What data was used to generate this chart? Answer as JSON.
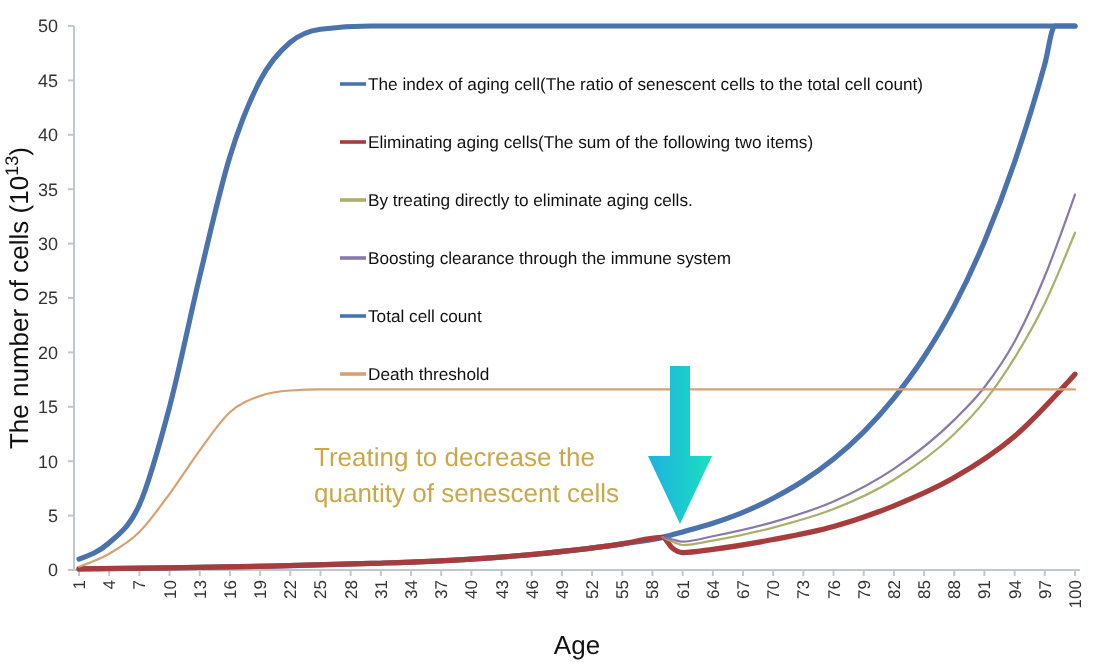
{
  "chart_data": {
    "type": "line",
    "xlabel": "Age",
    "ylabel": "The number of cells (10$^{13}$)",
    "xlim": [
      0.5,
      100.5
    ],
    "xticks": [
      1,
      4,
      7,
      10,
      13,
      16,
      19,
      22,
      25,
      28,
      31,
      34,
      37,
      40,
      43,
      46,
      49,
      52,
      55,
      58,
      61,
      64,
      67,
      70,
      73,
      76,
      79,
      82,
      85,
      88,
      91,
      94,
      97,
      100
    ],
    "ylim": [
      0,
      50
    ],
    "yticks": [
      0,
      5,
      10,
      15,
      20,
      25,
      30,
      35,
      40,
      45,
      50
    ],
    "grid": false,
    "legend": "top",
    "annotations": [
      "Treating to decrease the quantity of senescent cells"
    ],
    "series": [
      {
        "name": "The index of aging cell(The ratio of senescent cells to the total cell count)",
        "color": "#4a72ad",
        "x": [
          1,
          10,
          20,
          30,
          40,
          50,
          55,
          59,
          61,
          64,
          67,
          70,
          73,
          76,
          79,
          82,
          85,
          88,
          91,
          94,
          97,
          98,
          100
        ],
        "values": [
          0.1,
          0.2,
          0.35,
          0.6,
          1.0,
          1.8,
          2.4,
          3.0,
          3.5,
          4.3,
          5.3,
          6.6,
          8.2,
          10.2,
          12.7,
          15.8,
          19.6,
          24.3,
          30.2,
          37.5,
          46.5,
          50,
          50
        ]
      },
      {
        "name": "Eliminating aging cells(The sum of the following two items)",
        "color": "#a83c3c",
        "x": [
          1,
          10,
          20,
          30,
          40,
          50,
          55,
          59,
          60,
          61,
          64,
          70,
          76,
          82,
          88,
          94,
          100
        ],
        "values": [
          0.1,
          0.2,
          0.35,
          0.6,
          1.0,
          1.8,
          2.4,
          3.0,
          2.0,
          1.6,
          1.9,
          2.8,
          4.0,
          5.9,
          8.5,
          12.3,
          18
        ]
      },
      {
        "name": "By treating directly to eliminate aging cells.",
        "color": "#a9b06a",
        "x": [
          59,
          60,
          61,
          64,
          70,
          76,
          82,
          88,
          91,
          94,
          97,
          100
        ],
        "values": [
          3.0,
          2.6,
          2.3,
          2.7,
          3.9,
          5.6,
          8.3,
          12.5,
          15.5,
          19.5,
          24.5,
          31
        ]
      },
      {
        "name": "Boosting clearance through the immune system",
        "color": "#8a78a8",
        "x": [
          59,
          60,
          61,
          64,
          70,
          76,
          82,
          88,
          91,
          94,
          97,
          100
        ],
        "values": [
          3.0,
          2.8,
          2.6,
          3.1,
          4.4,
          6.3,
          9.3,
          13.8,
          16.8,
          21,
          27,
          34.5
        ]
      },
      {
        "name": "Total cell count",
        "color": "#4a72ad",
        "x": [
          1,
          4,
          7,
          10,
          13,
          16,
          19,
          22,
          25,
          30,
          100
        ],
        "values": [
          1,
          2.5,
          6,
          15,
          27,
          38,
          45,
          48.5,
          49.7,
          50,
          50
        ]
      },
      {
        "name": "Death threshold",
        "color": "#d9a070",
        "x": [
          1,
          4,
          7,
          10,
          13,
          16,
          19,
          22,
          25,
          30,
          100
        ],
        "values": [
          0.3,
          1.5,
          3.5,
          7,
          11,
          14.5,
          16,
          16.5,
          16.6,
          16.6,
          16.6
        ]
      }
    ]
  }
}
